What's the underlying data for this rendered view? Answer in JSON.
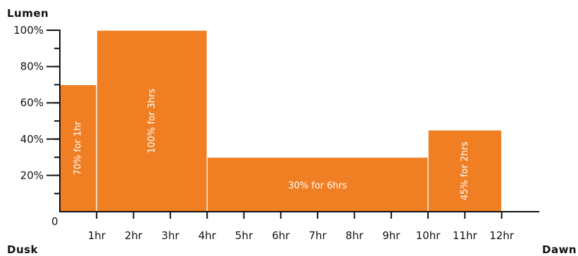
{
  "chart_data": {
    "type": "bar",
    "ylabel": "Lumen",
    "x_start_label": "Dusk",
    "x_end_label": "Dawn",
    "origin_label": "0",
    "xlim": [
      0,
      13
    ],
    "ylim": [
      0,
      100
    ],
    "x_ticks": [
      "1hr",
      "2hr",
      "3hr",
      "4hr",
      "5hr",
      "6hr",
      "7hr",
      "8hr",
      "9hr",
      "10hr",
      "11hr",
      "12hr"
    ],
    "y_ticks": [
      "20%",
      "40%",
      "60%",
      "80%",
      "100%"
    ],
    "segments": [
      {
        "start": 0,
        "end": 1,
        "value": 70,
        "label": "70% for 1hr",
        "label_orientation": "vertical"
      },
      {
        "start": 1,
        "end": 4,
        "value": 100,
        "label": "100% for 3hrs",
        "label_orientation": "vertical"
      },
      {
        "start": 4,
        "end": 10,
        "value": 30,
        "label": "30% for 6hrs",
        "label_orientation": "horizontal"
      },
      {
        "start": 10,
        "end": 12,
        "value": 45,
        "label": "45% for 2hrs",
        "label_orientation": "vertical"
      }
    ],
    "bar_color": "#F07F24",
    "axis_color": "#111111",
    "grid": false,
    "legend": "none"
  }
}
